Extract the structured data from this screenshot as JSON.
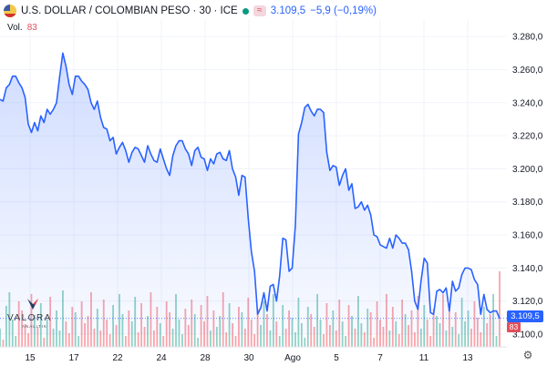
{
  "header": {
    "symbol": "U.S. DOLLAR / COLOMBIAN PESO · 30 · ICE",
    "last_price": "3.109,5",
    "change": "−5,9 (−0,19%)",
    "relation_icon": "≈"
  },
  "volume": {
    "label": "Vol.",
    "value": "83"
  },
  "logo": {
    "brand": "VALORA",
    "sub": "ANALITIK"
  },
  "price_label": "3.109,5",
  "volume_label": "83",
  "colors": {
    "line": "#2962ff",
    "area": "#2962ff",
    "vol_up": "#089981",
    "vol_down": "#f23645",
    "grid": "#f0f3fa"
  },
  "chart_data": {
    "type": "area",
    "ylim": [
      3100,
      3290
    ],
    "ytick_labels": [
      "3.280,0",
      "3.260,0",
      "3.240,0",
      "3.220,0",
      "3.200,0",
      "3.180,0",
      "3.160,0",
      "3.140,0",
      "3.120,0",
      "3.100,0"
    ],
    "yticks": [
      3280,
      3260,
      3240,
      3220,
      3200,
      3180,
      3160,
      3140,
      3120,
      3100
    ],
    "xtick_labels": [
      "15",
      "17",
      "22",
      "24",
      "28",
      "30",
      "Ago",
      "5",
      "7",
      "11",
      "13"
    ],
    "series": [
      {
        "values": [
          3242,
          3241,
          3249,
          3251,
          3256,
          3256,
          3252,
          3249,
          3243,
          3227,
          3222,
          3228,
          3223,
          3232,
          3228,
          3236,
          3233,
          3236,
          3240,
          3256,
          3270,
          3262,
          3251,
          3245,
          3256,
          3256,
          3253,
          3251,
          3248,
          3240,
          3236,
          3241,
          3231,
          3225,
          3224,
          3217,
          3219,
          3209,
          3213,
          3216,
          3211,
          3204,
          3210,
          3213,
          3212,
          3208,
          3204,
          3214,
          3209,
          3205,
          3204,
          3212,
          3206,
          3200,
          3196,
          3208,
          3214,
          3217,
          3217,
          3212,
          3209,
          3202,
          3211,
          3213,
          3207,
          3206,
          3199,
          3206,
          3203,
          3209,
          3210,
          3206,
          3205,
          3211,
          3200,
          3195,
          3184,
          3196,
          3195,
          3170,
          3150,
          3138,
          3112,
          3116,
          3125,
          3114,
          3129,
          3130,
          3120,
          3135,
          3158,
          3157,
          3138,
          3140,
          3166,
          3221,
          3228,
          3237,
          3239,
          3235,
          3232,
          3236,
          3236,
          3234,
          3210,
          3199,
          3202,
          3201,
          3190,
          3196,
          3200,
          3187,
          3191,
          3176,
          3177,
          3180,
          3175,
          3178,
          3172,
          3160,
          3159,
          3154,
          3153,
          3152,
          3158,
          3152,
          3160,
          3158,
          3155,
          3155,
          3151,
          3138,
          3120,
          3115,
          3132,
          3146,
          3143,
          3113,
          3112,
          3126,
          3127,
          3125,
          3128,
          3114,
          3132,
          3126,
          3128,
          3136,
          3140,
          3140,
          3139,
          3133,
          3130,
          3112,
          3124,
          3115,
          3113,
          3114,
          3114,
          3109.5
        ]
      }
    ],
    "volume": [
      20,
      8,
      45,
      60,
      30,
      12,
      50,
      40,
      25,
      15,
      58,
      35,
      22,
      48,
      10,
      30,
      55,
      20,
      40,
      18,
      62,
      28,
      15,
      44,
      38,
      12,
      50,
      26,
      34,
      60,
      20,
      42,
      18,
      52,
      30,
      14,
      46,
      24,
      58,
      36,
      12,
      40,
      28,
      55,
      16,
      48,
      22,
      34,
      60,
      18,
      44,
      26,
      12,
      50,
      38,
      20,
      58,
      30,
      14,
      42,
      24,
      52,
      36,
      10,
      46,
      28,
      56,
      18,
      40,
      22,
      34,
      60,
      16,
      48,
      26,
      12,
      44,
      38,
      20,
      54,
      30,
      14,
      42,
      24,
      50,
      36,
      18,
      58,
      28,
      12,
      46,
      20,
      40,
      32,
      16,
      54,
      26,
      10,
      44,
      36,
      22,
      58,
      30,
      14,
      48,
      24,
      40,
      18,
      52,
      28,
      12,
      46,
      34,
      20,
      56,
      26,
      16,
      42,
      38,
      10,
      50,
      30,
      22,
      58,
      18,
      44,
      28,
      14,
      52,
      36,
      24,
      40,
      16,
      56,
      20,
      46,
      30,
      12,
      42,
      34,
      26,
      58,
      18,
      48,
      22,
      38,
      14,
      54,
      28,
      40,
      20,
      50,
      32,
      16,
      44,
      26,
      36,
      58,
      12,
      83
    ],
    "volume_max": 90
  }
}
